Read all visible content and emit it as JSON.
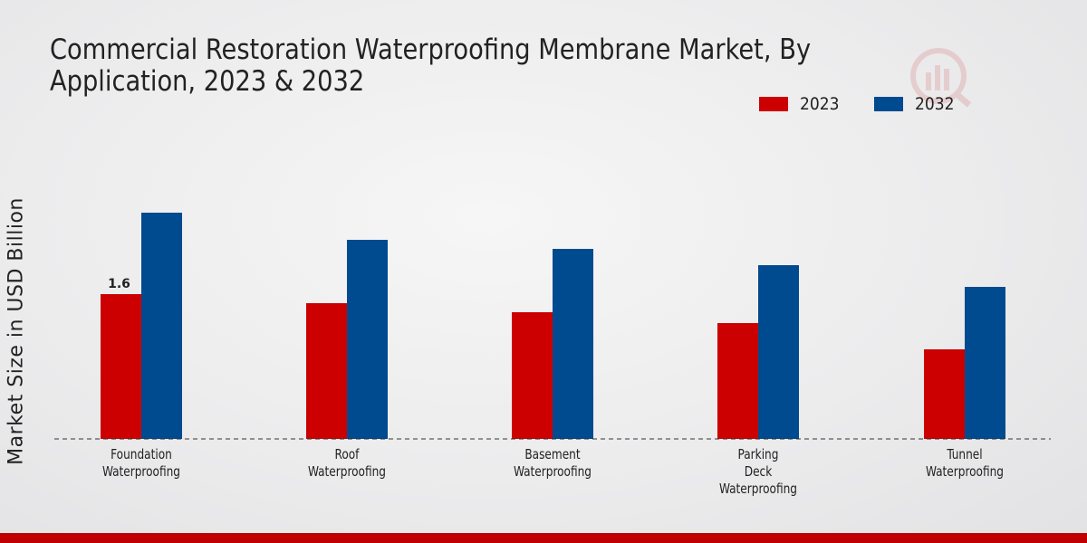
{
  "chart_data": {
    "type": "bar",
    "title": "Commercial Restoration Waterproofing Membrane Market, By Application, 2023 & 2032",
    "ylabel": "Market Size in USD Billion",
    "xlabel": "",
    "categories": [
      [
        "Foundation",
        "Waterproofing"
      ],
      [
        "Roof",
        "Waterproofing"
      ],
      [
        "Basement",
        "Waterproofing"
      ],
      [
        "Parking",
        "Deck",
        "Waterproofing"
      ],
      [
        "Tunnel",
        "Waterproofing"
      ]
    ],
    "series": [
      {
        "name": "2023",
        "color": "#cc0000",
        "values": [
          1.6,
          1.5,
          1.4,
          1.28,
          0.99
        ]
      },
      {
        "name": "2032",
        "color": "#004a8f",
        "values": [
          2.5,
          2.2,
          2.1,
          1.92,
          1.68
        ]
      }
    ],
    "data_labels": [
      {
        "series": 0,
        "index": 0,
        "text": "1.6"
      }
    ],
    "ylim": [
      0,
      3.2
    ],
    "grid": false,
    "legend_position": "top-right"
  }
}
